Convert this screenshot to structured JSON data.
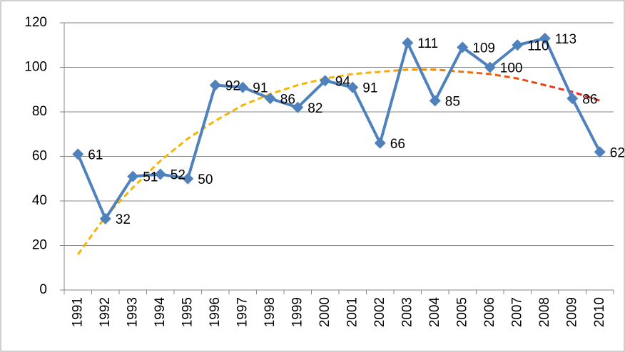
{
  "chart_data": {
    "type": "line",
    "categories": [
      "1991",
      "1992",
      "1993",
      "1994",
      "1995",
      "1996",
      "1997",
      "1998",
      "1999",
      "2000",
      "2001",
      "2002",
      "2003",
      "2004",
      "2005",
      "2006",
      "2007",
      "2008",
      "2009",
      "2010"
    ],
    "series": [
      {
        "color": "#4f81bd",
        "values": [
          61,
          32,
          51,
          52,
          50,
          92,
          91,
          86,
          82,
          94,
          91,
          66,
          111,
          85,
          109,
          100,
          110,
          113,
          86,
          62
        ]
      }
    ],
    "trendline": {
      "colors": [
        "#f7b500",
        "#e8291c"
      ],
      "values": [
        16,
        33,
        46,
        58,
        68,
        76,
        83,
        88,
        92,
        95,
        97,
        98,
        99,
        99,
        98,
        97,
        95,
        92,
        89,
        85
      ]
    },
    "ylim": [
      0,
      120
    ],
    "yticks": [
      0,
      20,
      40,
      60,
      80,
      100,
      120
    ],
    "grid": true
  }
}
